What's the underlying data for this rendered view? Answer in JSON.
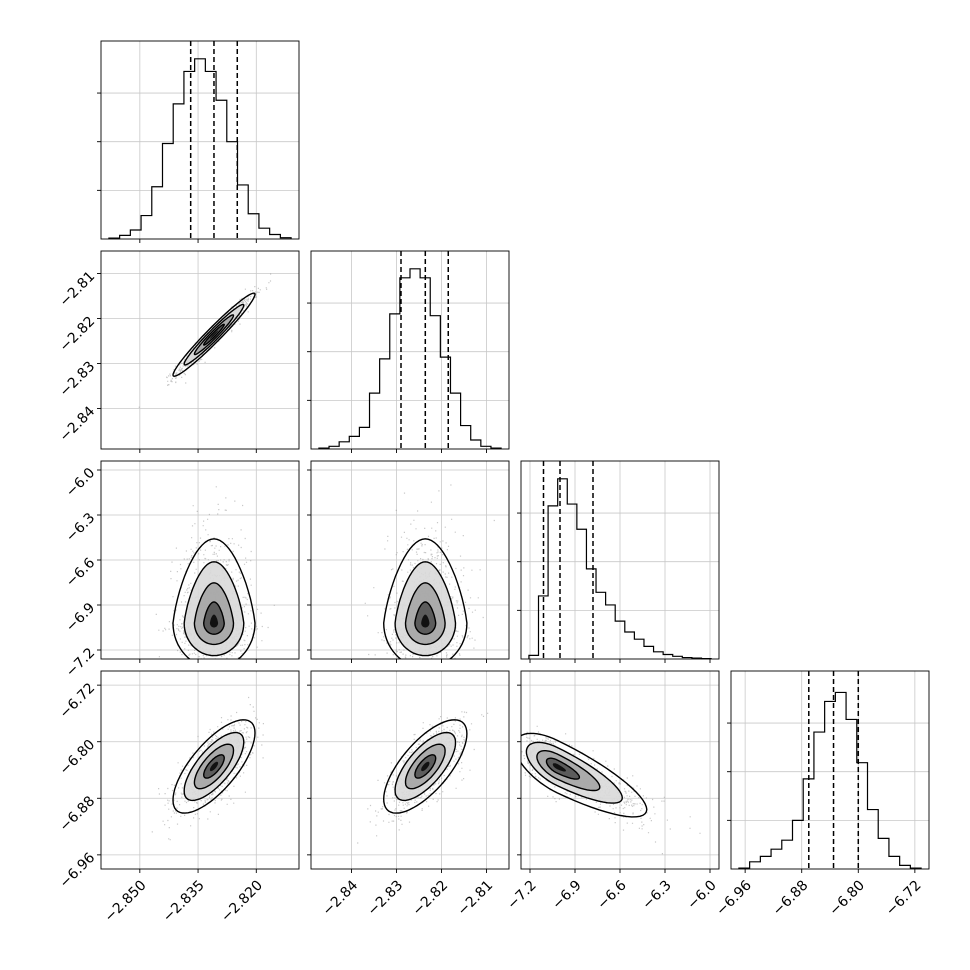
{
  "chart_data": {
    "type": "corner",
    "grid": true,
    "params": [
      {
        "range": [
          -2.86,
          -2.809
        ],
        "ticks": [
          -2.85,
          -2.835,
          -2.82
        ],
        "tick_labels": [
          "−2.850",
          "−2.835",
          "−2.820"
        ],
        "quantiles": [
          -2.8369,
          -2.8309,
          -2.8249
        ],
        "histogram": [
          0.005,
          0.02,
          0.05,
          0.13,
          0.29,
          0.53,
          0.75,
          0.93,
          1.0,
          0.93,
          0.77,
          0.54,
          0.3,
          0.14,
          0.06,
          0.025,
          0.007
        ]
      },
      {
        "range": [
          -2.849,
          -2.805
        ],
        "ticks": [
          -2.84,
          -2.83,
          -2.82,
          -2.81
        ],
        "tick_labels": [
          "−2.84",
          "−2.83",
          "−2.82",
          "−2.81"
        ],
        "quantiles": [
          -2.829,
          -2.8236,
          -2.8185
        ],
        "histogram": [
          0.005,
          0.015,
          0.04,
          0.07,
          0.12,
          0.31,
          0.5,
          0.75,
          0.95,
          1.0,
          0.95,
          0.74,
          0.51,
          0.31,
          0.13,
          0.05,
          0.015,
          0.005
        ]
      },
      {
        "range": [
          -7.26,
          -5.94
        ],
        "ticks": [
          -7.2,
          -6.9,
          -6.6,
          -6.3,
          -6.0
        ],
        "tick_labels": [
          "−7.2",
          "−6.9",
          "−6.6",
          "−6.3",
          "−6.0"
        ],
        "quantiles": [
          -7.11,
          -7.0,
          -6.78
        ],
        "histogram": [
          0.02,
          0.35,
          0.85,
          1.0,
          0.86,
          0.72,
          0.5,
          0.37,
          0.3,
          0.21,
          0.15,
          0.11,
          0.07,
          0.04,
          0.025,
          0.015,
          0.008,
          0.005,
          0.002
        ]
      },
      {
        "range": [
          -6.98,
          -6.7
        ],
        "ticks": [
          -6.96,
          -6.88,
          -6.8,
          -6.72
        ],
        "tick_labels": [
          "−6.96",
          "−6.88",
          "−6.80",
          "−6.72"
        ],
        "quantiles": [
          -6.87,
          -6.835,
          -6.8
        ],
        "histogram": [
          0.005,
          0.04,
          0.07,
          0.11,
          0.16,
          0.27,
          0.5,
          0.76,
          0.93,
          0.98,
          0.83,
          0.59,
          0.33,
          0.17,
          0.07,
          0.02,
          0.005
        ]
      }
    ],
    "pairs": [
      {
        "x": 0,
        "y": 1,
        "center": [
          -2.8309,
          -2.8236
        ],
        "sd": [
          0.0048,
          0.0042
        ],
        "corr": 0.97,
        "skew": 0
      },
      {
        "x": 0,
        "y": 2,
        "center": [
          -2.8309,
          -7.02
        ],
        "sd": [
          0.0048,
          0.17
        ],
        "corr": 0.0,
        "skew": 1
      },
      {
        "x": 1,
        "y": 2,
        "center": [
          -2.8236,
          -7.02
        ],
        "sd": [
          0.0042,
          0.17
        ],
        "corr": 0.0,
        "skew": 1
      },
      {
        "x": 0,
        "y": 3,
        "center": [
          -2.8309,
          -6.835
        ],
        "sd": [
          0.0048,
          0.03
        ],
        "corr": 0.72,
        "skew": 0
      },
      {
        "x": 1,
        "y": 3,
        "center": [
          -2.8236,
          -6.835
        ],
        "sd": [
          0.0042,
          0.03
        ],
        "corr": 0.7,
        "skew": 0
      },
      {
        "x": 2,
        "y": 3,
        "center": [
          -7.02,
          -6.835
        ],
        "sd": [
          0.17,
          0.03
        ],
        "corr": -0.75,
        "skew": 2
      }
    ]
  }
}
